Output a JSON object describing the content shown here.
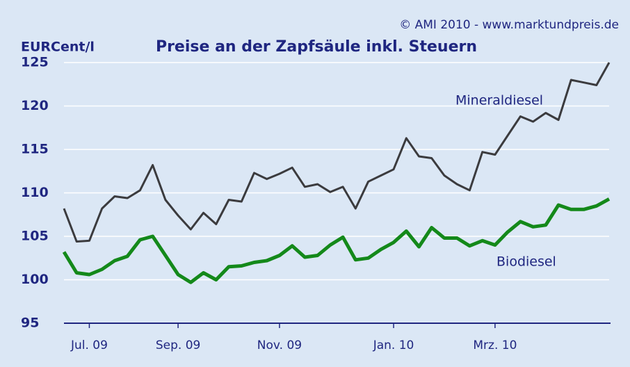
{
  "chart_data": {
    "type": "line",
    "title": "Preise an der Zapfsäule inkl. Steuern",
    "source": "© AMI 2010 - www.marktundpreis.de",
    "y_label": "EURCent/l",
    "categories": [
      null,
      null,
      "Jul. 09",
      null,
      null,
      null,
      null,
      null,
      null,
      "Sep. 09",
      null,
      null,
      null,
      null,
      null,
      null,
      null,
      "Nov. 09",
      null,
      null,
      null,
      null,
      null,
      null,
      null,
      null,
      "Jan. 10",
      null,
      null,
      null,
      null,
      null,
      null,
      null,
      "Mrz. 10",
      null,
      null,
      null,
      null,
      null,
      null,
      null,
      null,
      null
    ],
    "series": [
      {
        "name": "Mineraldiesel",
        "color": "#3b3b3e",
        "values": [
          108.2,
          104.4,
          104.5,
          108.2,
          109.6,
          109.4,
          110.3,
          113.2,
          109.2,
          107.4,
          105.8,
          107.7,
          106.4,
          109.2,
          109,
          112.3,
          111.6,
          112.2,
          112.9,
          110.7,
          111,
          110.1,
          110.7,
          108.2,
          111.3,
          112,
          112.7,
          116.3,
          114.2,
          114,
          112,
          111,
          110.3,
          114.7,
          114.4,
          116.6,
          118.8,
          118.2,
          119.2,
          118.4,
          123,
          122.7,
          122.4,
          125
        ]
      },
      {
        "name": "Biodiesel",
        "color": "#14891a",
        "values": [
          103.2,
          100.8,
          100.6,
          101.2,
          102.2,
          102.7,
          104.6,
          105,
          102.8,
          100.6,
          99.7,
          100.8,
          100,
          101.5,
          101.6,
          102,
          102.2,
          102.8,
          103.9,
          102.6,
          102.8,
          104,
          104.9,
          102.3,
          102.5,
          103.5,
          104.3,
          105.6,
          103.8,
          106,
          104.8,
          104.8,
          103.9,
          104.5,
          104,
          105.5,
          106.7,
          106.1,
          106.3,
          108.6,
          108.1,
          108.1,
          108.5,
          109.3
        ]
      }
    ],
    "ylim": [
      95,
      125
    ],
    "yticks": [
      95,
      100,
      105,
      110,
      115,
      120,
      125
    ],
    "grid": true
  }
}
